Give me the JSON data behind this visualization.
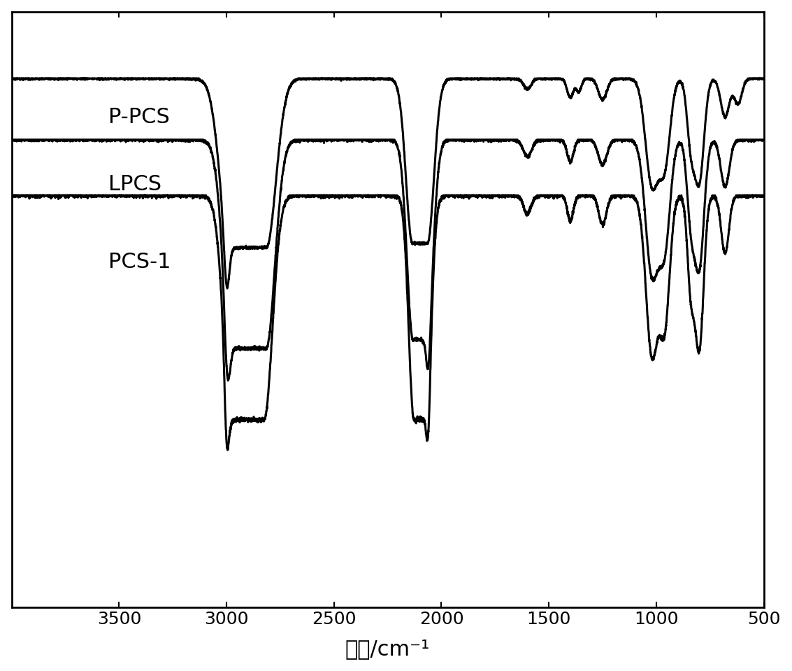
{
  "x_min": 500,
  "x_max": 4000,
  "xlabel": "波数/cm⁻¹",
  "xlabel_fontsize": 22,
  "tick_fontsize": 18,
  "labels": [
    "P-PCS",
    "LPCS",
    "PCS-1"
  ],
  "label_fontsize": 22,
  "background_color": "#ffffff",
  "line_color": "#000000",
  "line_width": 2.2,
  "baseline_offsets": [
    0.93,
    0.82,
    0.72
  ],
  "noise_seed": 7,
  "noise_level": 0.003
}
